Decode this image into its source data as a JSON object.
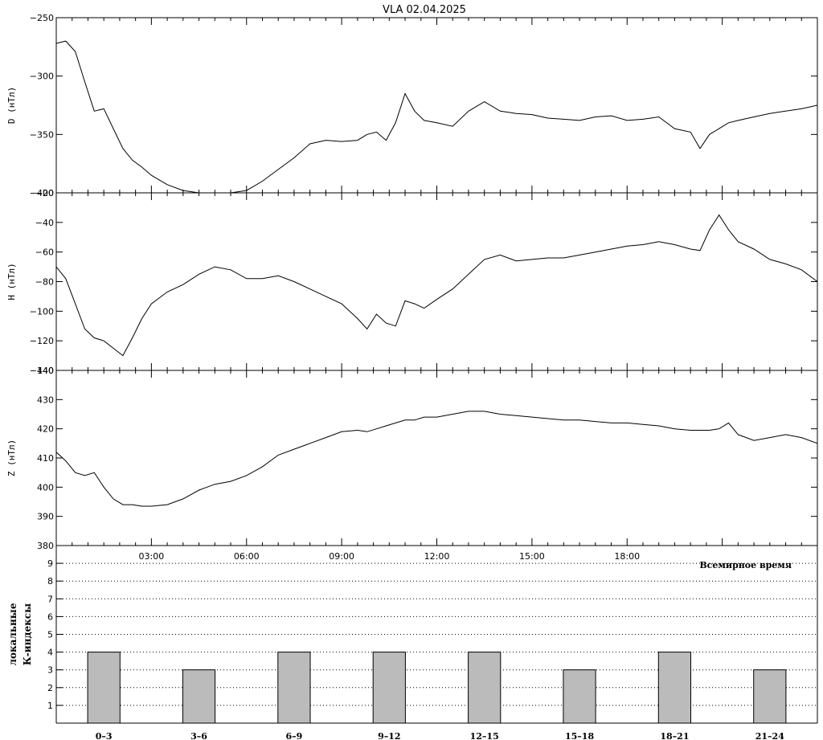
{
  "title": "VLA   02.04.2025",
  "chart_data": [
    {
      "type": "line",
      "ylabel": "D (нТл)",
      "ylim": [
        -400,
        -250
      ],
      "yticks": [
        -250,
        -300,
        -350,
        -400
      ],
      "xlim": [
        0,
        24
      ],
      "series": [
        {
          "x": [
            0,
            0.3,
            0.6,
            0.9,
            1.2,
            1.5,
            1.8,
            2.1,
            2.4,
            2.7,
            3.0,
            3.5,
            4.0,
            4.5,
            5.0,
            5.5,
            6.0,
            6.5,
            7.0,
            7.5,
            8.0,
            8.5,
            9.0,
            9.5,
            9.8,
            10.1,
            10.4,
            10.7,
            11.0,
            11.3,
            11.6,
            12.0,
            12.5,
            13.0,
            13.5,
            14.0,
            14.5,
            15.0,
            15.5,
            16.0,
            16.5,
            17.0,
            17.5,
            18.0,
            18.5,
            19.0,
            19.5,
            20.0,
            20.3,
            20.6,
            20.9,
            21.2,
            21.5,
            22.0,
            22.5,
            23.0,
            23.5,
            24.0
          ],
          "y": [
            -272,
            -270,
            -279,
            -305,
            -330,
            -328,
            -345,
            -362,
            -372,
            -378,
            -385,
            -393,
            -398,
            -400,
            -400,
            -400,
            -398,
            -390,
            -380,
            -370,
            -358,
            -355,
            -356,
            -355,
            -350,
            -348,
            -355,
            -340,
            -315,
            -330,
            -338,
            -340,
            -343,
            -330,
            -322,
            -330,
            -332,
            -333,
            -336,
            -337,
            -338,
            -335,
            -334,
            -338,
            -337,
            -335,
            -345,
            -348,
            -362,
            -350,
            -345,
            -340,
            -338,
            -335,
            -332,
            -330,
            -328,
            -325
          ]
        }
      ]
    },
    {
      "type": "line",
      "ylabel": "H (нТл)",
      "ylim": [
        -140,
        -20
      ],
      "yticks": [
        -20,
        -40,
        -60,
        -80,
        -100,
        -120,
        -140
      ],
      "xlim": [
        0,
        24
      ],
      "series": [
        {
          "x": [
            0,
            0.3,
            0.6,
            0.9,
            1.2,
            1.5,
            1.8,
            2.1,
            2.4,
            2.7,
            3.0,
            3.5,
            4.0,
            4.5,
            5.0,
            5.5,
            6.0,
            6.5,
            7.0,
            7.5,
            8.0,
            8.5,
            9.0,
            9.5,
            9.8,
            10.1,
            10.4,
            10.7,
            11.0,
            11.3,
            11.6,
            12.0,
            12.5,
            13.0,
            13.5,
            14.0,
            14.5,
            15.0,
            15.5,
            16.0,
            16.5,
            17.0,
            17.5,
            18.0,
            18.5,
            19.0,
            19.5,
            20.0,
            20.3,
            20.6,
            20.9,
            21.2,
            21.5,
            22.0,
            22.5,
            23.0,
            23.5,
            24.0
          ],
          "y": [
            -70,
            -78,
            -95,
            -112,
            -118,
            -120,
            -125,
            -130,
            -118,
            -105,
            -95,
            -87,
            -82,
            -75,
            -70,
            -72,
            -78,
            -78,
            -76,
            -80,
            -85,
            -90,
            -95,
            -105,
            -112,
            -102,
            -108,
            -110,
            -93,
            -95,
            -98,
            -92,
            -85,
            -75,
            -65,
            -62,
            -66,
            -65,
            -64,
            -64,
            -62,
            -60,
            -58,
            -56,
            -55,
            -53,
            -55,
            -58,
            -59,
            -45,
            -35,
            -45,
            -53,
            -58,
            -65,
            -68,
            -72,
            -80
          ]
        }
      ]
    },
    {
      "type": "line",
      "ylabel": "Z (нТл)",
      "ylim": [
        380,
        440
      ],
      "yticks": [
        440,
        430,
        420,
        410,
        400,
        390,
        380
      ],
      "xlim": [
        0,
        24
      ],
      "series": [
        {
          "x": [
            0,
            0.3,
            0.6,
            0.9,
            1.2,
            1.5,
            1.8,
            2.1,
            2.4,
            2.7,
            3.0,
            3.5,
            4.0,
            4.5,
            5.0,
            5.5,
            6.0,
            6.5,
            7.0,
            7.5,
            8.0,
            8.5,
            9.0,
            9.5,
            9.8,
            10.1,
            10.4,
            10.7,
            11.0,
            11.3,
            11.6,
            12.0,
            12.5,
            13.0,
            13.5,
            14.0,
            14.5,
            15.0,
            15.5,
            16.0,
            16.5,
            17.0,
            17.5,
            18.0,
            18.5,
            19.0,
            19.5,
            20.0,
            20.3,
            20.6,
            20.9,
            21.2,
            21.5,
            22.0,
            22.5,
            23.0,
            23.5,
            24.0
          ],
          "y": [
            412,
            409,
            405,
            404,
            405,
            400,
            396,
            394,
            394,
            393.5,
            393.5,
            394,
            396,
            399,
            401,
            402,
            404,
            407,
            411,
            413,
            415,
            417,
            419,
            419.5,
            419,
            420,
            421,
            422,
            423,
            423,
            424,
            424,
            425,
            426,
            426,
            425,
            424.5,
            424,
            423.5,
            423,
            423,
            422.5,
            422,
            422,
            421.5,
            421,
            420,
            419.5,
            419.5,
            419.5,
            420,
            422,
            418,
            416,
            417,
            418,
            417,
            415
          ]
        }
      ]
    },
    {
      "type": "bar",
      "ylabel_lines": [
        "локальные",
        "К-индексы"
      ],
      "categories": [
        "0–3",
        "3–6",
        "6–9",
        "9–12",
        "12–15",
        "15–18",
        "18–21",
        "21–24"
      ],
      "values": [
        4,
        3,
        4,
        4,
        4,
        3,
        4,
        3
      ],
      "ylim": [
        0,
        10
      ],
      "yticks": [
        1,
        2,
        3,
        4,
        5,
        6,
        7,
        8,
        9
      ],
      "grid": "dotted",
      "bar_color": "#bbbbbb"
    }
  ],
  "x_axis": {
    "tick_labels": [
      "03:00",
      "06:00",
      "09:00",
      "12:00",
      "15:00",
      "18:00"
    ],
    "tick_hours": [
      3,
      6,
      9,
      12,
      15,
      18
    ],
    "label": "Всемирное время"
  }
}
